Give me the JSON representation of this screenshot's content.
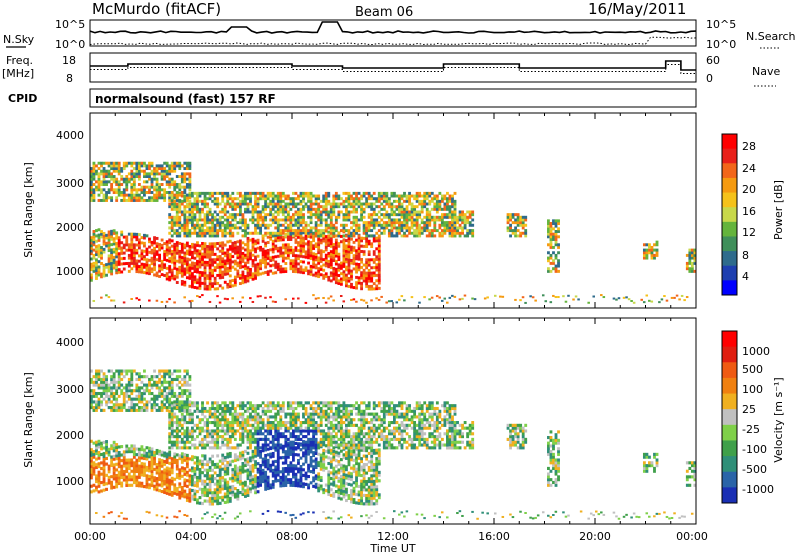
{
  "header": {
    "station": "McMurdo (fitACF)",
    "beam": "Beam 06",
    "date": "16/May/2011"
  },
  "top_panels": {
    "nsky_label": "N.Sky",
    "nsearch_label": "N.Search",
    "nsky_ticks": [
      "10^5",
      "10^0"
    ],
    "nsearch_ticks": [
      "10^5",
      "10^0"
    ],
    "freq_label_line1": "Freq.",
    "freq_label_line2": "[MHz]",
    "freq_ticks": [
      "18",
      "8"
    ],
    "nave_label": "Nave",
    "nave_ticks": [
      "60",
      "0"
    ],
    "cpid_label": "CPID",
    "cpid_text": "normalsound (fast) 157 RF"
  },
  "colors": {
    "power_scale": [
      "#0000ff",
      "#1e3fb0",
      "#2e6b8c",
      "#3f8f5a",
      "#64b43c",
      "#c8d84a",
      "#f5c21a",
      "#f59a10",
      "#f2661a",
      "#e8201a",
      "#ff0000"
    ],
    "velocity_scale": [
      "#1a2fb4",
      "#2a64a8",
      "#2f8f78",
      "#3fa04a",
      "#7fd049",
      "#c0c0c0",
      "#f0b020",
      "#f08010",
      "#ef5a12",
      "#e01e10",
      "#ff0000"
    ]
  },
  "chart_data": [
    {
      "type": "heatmap",
      "name": "power",
      "ylabel": "Slant Range [km]",
      "yticks": [
        "4000",
        "3000",
        "2000",
        "1000"
      ],
      "ylim": [
        200,
        4600
      ],
      "xlim_hours": [
        0,
        24
      ],
      "colorbar_label": "Power [dB]",
      "colorbar_ticks": [
        "28",
        "24",
        "20",
        "16",
        "12",
        "8",
        "4"
      ],
      "colorbar_range": [
        0,
        32
      ]
    },
    {
      "type": "heatmap",
      "name": "velocity",
      "ylabel": "Slant Range [km]",
      "yticks": [
        "4000",
        "3000",
        "2000",
        "1000"
      ],
      "ylim": [
        200,
        4600
      ],
      "xlim_hours": [
        0,
        24
      ],
      "colorbar_label": "Velocity [m s⁻¹]",
      "colorbar_ticks": [
        "1000",
        "500",
        "100",
        "25",
        "-25",
        "-100",
        "-500",
        "-1000"
      ],
      "xlabel": "Time UT",
      "xticks": [
        "00:00",
        "04:00",
        "08:00",
        "12:00",
        "16:00",
        "20:00",
        "00:00"
      ]
    }
  ]
}
